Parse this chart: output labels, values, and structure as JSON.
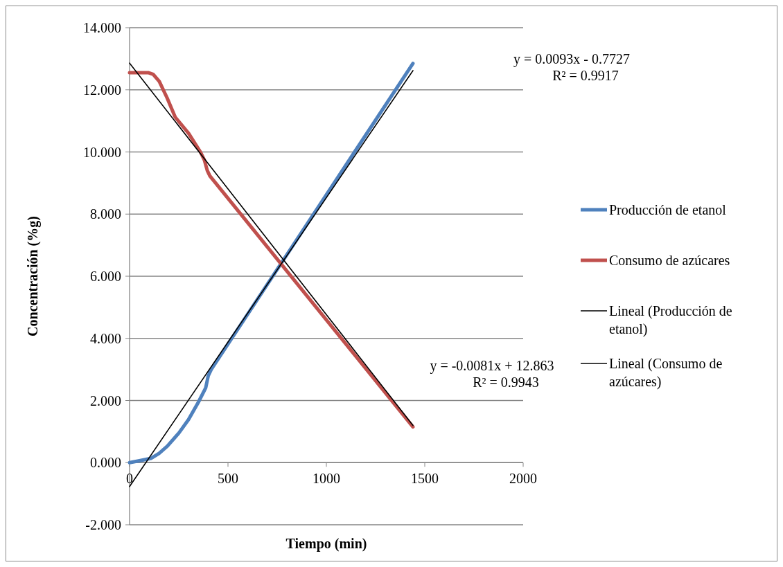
{
  "chart_data": {
    "type": "line",
    "xlabel": "Tiempo (min)",
    "ylabel": "Concentración (%g)",
    "xlim": [
      0,
      2000
    ],
    "xticks": [
      0,
      500,
      1000,
      1500,
      2000
    ],
    "ylim": [
      -2,
      14
    ],
    "yticks": [
      {
        "value": -2,
        "label": "-2.000"
      },
      {
        "value": 0,
        "label": "0.000"
      },
      {
        "value": 2,
        "label": "2.000"
      },
      {
        "value": 4,
        "label": "4.000"
      },
      {
        "value": 6,
        "label": "6.000"
      },
      {
        "value": 8,
        "label": "8.000"
      },
      {
        "value": 10,
        "label": "10.000"
      },
      {
        "value": 12,
        "label": "12.000"
      },
      {
        "value": 14,
        "label": "14.000"
      }
    ],
    "grid": "y",
    "legend": "right",
    "marker": "none",
    "line_style": "solid",
    "series": [
      {
        "name": "Producción de etanol",
        "color": "#4f81bd",
        "x": [
          0,
          50,
          110,
          150,
          192,
          250,
          299,
          350,
          387,
          400,
          415,
          1440
        ],
        "values": [
          0,
          0.06,
          0.14,
          0.3,
          0.53,
          0.95,
          1.38,
          1.95,
          2.41,
          2.8,
          3.0,
          12.85
        ]
      },
      {
        "name": "Consumo de azúcares",
        "color": "#c0504d",
        "x": [
          0,
          97,
          120,
          151,
          190,
          232,
          300,
          360,
          380,
          395,
          408,
          1440
        ],
        "values": [
          12.55,
          12.55,
          12.5,
          12.27,
          11.75,
          11.12,
          10.6,
          10.0,
          9.74,
          9.4,
          9.23,
          1.15
        ]
      },
      {
        "name": "Lineal (Producción de etanol)",
        "color": "#000000",
        "x": [
          0,
          1440
        ],
        "values": [
          -0.77,
          12.62
        ]
      },
      {
        "name": "Lineal (Consumo de azúcares)",
        "color": "#000000",
        "x": [
          0,
          1440
        ],
        "values": [
          12.86,
          1.2
        ]
      }
    ],
    "annotations": [
      "y = 0.0093x - 0.7727\nR² = 0.9917",
      "y = -0.0081x + 12.863\nR² = 0.9943"
    ]
  }
}
